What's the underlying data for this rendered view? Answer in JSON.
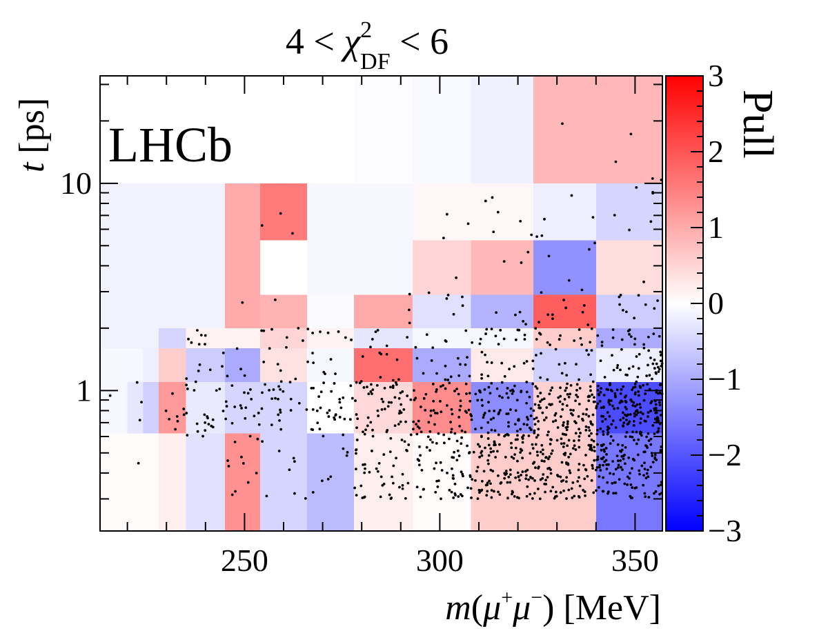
{
  "chart_data": {
    "type": "heatmap",
    "title": {
      "prefix": "4 < ",
      "symbol": "χ",
      "superscript": "2",
      "subscript": "DF",
      "suffix": " < 6"
    },
    "label": "LHCb",
    "xlabel": {
      "m": "m",
      "open": "(",
      "mu1": "μ",
      "plus": "+",
      "mu2": "μ",
      "minus": "−",
      "close": ")",
      "unit": " [MeV]"
    },
    "ylabel": {
      "t": "t",
      "unit": " [ps]"
    },
    "xlim": [
      213,
      357
    ],
    "ylim": [
      0.21,
      33
    ],
    "yscale": "log",
    "x_ticks": [
      "250",
      "300",
      "350"
    ],
    "y_ticks": [
      "1",
      "10"
    ],
    "colorbar": {
      "label": "Pull",
      "range": [
        -3,
        3
      ],
      "ticks": [
        "3",
        "2",
        "1",
        "0",
        "−1",
        "−2",
        "−3"
      ]
    },
    "cells": [
      {
        "x": [
          213,
          357
        ],
        "y": [
          10,
          33
        ],
        "pull": 0.0
      },
      {
        "x": [
          278,
          293
        ],
        "y": [
          10,
          33
        ],
        "pull": -0.03
      },
      {
        "x": [
          293,
          308
        ],
        "y": [
          10,
          33
        ],
        "pull": -0.08
      },
      {
        "x": [
          308,
          324
        ],
        "y": [
          10,
          33
        ],
        "pull": -0.18
      },
      {
        "x": [
          324,
          357
        ],
        "y": [
          10,
          33
        ],
        "pull": 0.85
      },
      {
        "x": [
          213,
          245
        ],
        "y": [
          2.9,
          10
        ],
        "pull": -0.15
      },
      {
        "x": [
          245,
          254
        ],
        "y": [
          2.9,
          10
        ],
        "pull": 1.0
      },
      {
        "x": [
          254,
          266
        ],
        "y": [
          5.3,
          10
        ],
        "pull": 1.55
      },
      {
        "x": [
          254,
          266
        ],
        "y": [
          2.9,
          5.3
        ],
        "pull": 0.0
      },
      {
        "x": [
          266,
          278
        ],
        "y": [
          2.9,
          10
        ],
        "pull": -0.1
      },
      {
        "x": [
          278,
          293
        ],
        "y": [
          2.9,
          10
        ],
        "pull": -0.1
      },
      {
        "x": [
          293,
          308
        ],
        "y": [
          5.3,
          10
        ],
        "pull": 0.1
      },
      {
        "x": [
          308,
          324
        ],
        "y": [
          5.3,
          10
        ],
        "pull": 0.1
      },
      {
        "x": [
          324,
          340
        ],
        "y": [
          5.3,
          10
        ],
        "pull": -0.2
      },
      {
        "x": [
          340,
          357
        ],
        "y": [
          5.3,
          10
        ],
        "pull": -0.5
      },
      {
        "x": [
          293,
          308
        ],
        "y": [
          2.9,
          5.3
        ],
        "pull": 0.5
      },
      {
        "x": [
          308,
          324
        ],
        "y": [
          2.9,
          5.3
        ],
        "pull": 0.85
      },
      {
        "x": [
          324,
          340
        ],
        "y": [
          2.9,
          5.3
        ],
        "pull": -1.3
      },
      {
        "x": [
          340,
          357
        ],
        "y": [
          2.9,
          5.3
        ],
        "pull": 0.4
      },
      {
        "x": [
          213,
          245
        ],
        "y": [
          2.0,
          2.9
        ],
        "pull": -0.15
      },
      {
        "x": [
          245,
          254
        ],
        "y": [
          2.0,
          2.9
        ],
        "pull": 1.0
      },
      {
        "x": [
          254,
          266
        ],
        "y": [
          2.0,
          2.9
        ],
        "pull": 0.9
      },
      {
        "x": [
          266,
          278
        ],
        "y": [
          2.0,
          2.9
        ],
        "pull": -0.05
      },
      {
        "x": [
          278,
          293
        ],
        "y": [
          2.0,
          2.9
        ],
        "pull": 1.0
      },
      {
        "x": [
          293,
          308
        ],
        "y": [
          2.0,
          2.9
        ],
        "pull": -0.35
      },
      {
        "x": [
          308,
          324
        ],
        "y": [
          2.0,
          2.9
        ],
        "pull": -0.9
      },
      {
        "x": [
          324,
          340
        ],
        "y": [
          2.0,
          2.9
        ],
        "pull": 1.9
      },
      {
        "x": [
          340,
          357
        ],
        "y": [
          2.0,
          2.9
        ],
        "pull": -0.6
      },
      {
        "x": [
          213,
          228
        ],
        "y": [
          1.6,
          2.0
        ],
        "pull": -0.15
      },
      {
        "x": [
          228,
          235
        ],
        "y": [
          1.6,
          2.0
        ],
        "pull": -0.5
      },
      {
        "x": [
          235,
          245
        ],
        "y": [
          1.6,
          2.0
        ],
        "pull": 0.15
      },
      {
        "x": [
          245,
          254
        ],
        "y": [
          1.6,
          2.0
        ],
        "pull": 0.15
      },
      {
        "x": [
          254,
          266
        ],
        "y": [
          1.6,
          2.0
        ],
        "pull": 0.5
      },
      {
        "x": [
          266,
          278
        ],
        "y": [
          1.6,
          2.0
        ],
        "pull": 0.15
      },
      {
        "x": [
          278,
          293
        ],
        "y": [
          1.6,
          2.0
        ],
        "pull": -0.3
      },
      {
        "x": [
          293,
          308
        ],
        "y": [
          1.6,
          2.0
        ],
        "pull": -0.1
      },
      {
        "x": [
          308,
          324
        ],
        "y": [
          1.6,
          2.0
        ],
        "pull": -0.1
      },
      {
        "x": [
          324,
          340
        ],
        "y": [
          1.6,
          2.0
        ],
        "pull": 0.6
      },
      {
        "x": [
          340,
          357
        ],
        "y": [
          1.6,
          2.0
        ],
        "pull": -1.0
      },
      {
        "x": [
          213,
          224
        ],
        "y": [
          1.1,
          1.6
        ],
        "pull": -0.1
      },
      {
        "x": [
          224,
          228
        ],
        "y": [
          1.1,
          1.6
        ],
        "pull": -0.2
      },
      {
        "x": [
          228,
          235
        ],
        "y": [
          1.1,
          1.6
        ],
        "pull": 0.6
      },
      {
        "x": [
          235,
          245
        ],
        "y": [
          1.1,
          1.6
        ],
        "pull": -0.6
      },
      {
        "x": [
          245,
          254
        ],
        "y": [
          1.1,
          1.6
        ],
        "pull": -1.0
      },
      {
        "x": [
          254,
          266
        ],
        "y": [
          1.1,
          1.6
        ],
        "pull": 0.35
      },
      {
        "x": [
          266,
          278
        ],
        "y": [
          1.1,
          1.6
        ],
        "pull": -0.1
      },
      {
        "x": [
          278,
          293
        ],
        "y": [
          1.1,
          1.6
        ],
        "pull": 1.7
      },
      {
        "x": [
          293,
          308
        ],
        "y": [
          1.1,
          1.6
        ],
        "pull": -1.0
      },
      {
        "x": [
          308,
          324
        ],
        "y": [
          1.1,
          1.6
        ],
        "pull": 0.25
      },
      {
        "x": [
          324,
          340
        ],
        "y": [
          1.1,
          1.6
        ],
        "pull": -0.55
      },
      {
        "x": [
          340,
          357
        ],
        "y": [
          1.1,
          1.6
        ],
        "pull": -0.2
      },
      {
        "x": [
          213,
          220
        ],
        "y": [
          0.62,
          1.1
        ],
        "pull": -0.1
      },
      {
        "x": [
          220,
          224
        ],
        "y": [
          0.62,
          1.1
        ],
        "pull": -0.3
      },
      {
        "x": [
          224,
          228
        ],
        "y": [
          0.62,
          1.1
        ],
        "pull": -0.55
      },
      {
        "x": [
          228,
          235
        ],
        "y": [
          0.62,
          1.1
        ],
        "pull": 1.2
      },
      {
        "x": [
          235,
          245
        ],
        "y": [
          0.62,
          1.1
        ],
        "pull": -0.25
      },
      {
        "x": [
          245,
          254
        ],
        "y": [
          0.62,
          1.1
        ],
        "pull": -0.5
      },
      {
        "x": [
          254,
          266
        ],
        "y": [
          0.62,
          1.1
        ],
        "pull": -0.5
      },
      {
        "x": [
          266,
          278
        ],
        "y": [
          0.62,
          1.1
        ],
        "pull": 0.0
      },
      {
        "x": [
          278,
          293
        ],
        "y": [
          0.62,
          1.1
        ],
        "pull": 0.45
      },
      {
        "x": [
          293,
          308
        ],
        "y": [
          0.62,
          1.1
        ],
        "pull": 1.35
      },
      {
        "x": [
          308,
          324
        ],
        "y": [
          0.62,
          1.1
        ],
        "pull": -1.35
      },
      {
        "x": [
          324,
          340
        ],
        "y": [
          0.62,
          1.1
        ],
        "pull": 0.55
      },
      {
        "x": [
          340,
          357
        ],
        "y": [
          0.62,
          1.1
        ],
        "pull": -2.1
      },
      {
        "x": [
          213,
          228
        ],
        "y": [
          0.21,
          0.62
        ],
        "pull": 0.05
      },
      {
        "x": [
          228,
          235
        ],
        "y": [
          0.21,
          0.62
        ],
        "pull": 0.2
      },
      {
        "x": [
          235,
          245
        ],
        "y": [
          0.21,
          0.62
        ],
        "pull": -0.35
      },
      {
        "x": [
          245,
          254
        ],
        "y": [
          0.21,
          0.62
        ],
        "pull": 1.3
      },
      {
        "x": [
          254,
          266
        ],
        "y": [
          0.21,
          0.62
        ],
        "pull": -0.5
      },
      {
        "x": [
          266,
          278
        ],
        "y": [
          0.21,
          0.62
        ],
        "pull": -0.8
      },
      {
        "x": [
          278,
          293
        ],
        "y": [
          0.21,
          0.62
        ],
        "pull": 0.2
      },
      {
        "x": [
          293,
          308
        ],
        "y": [
          0.21,
          0.62
        ],
        "pull": 0.05
      },
      {
        "x": [
          308,
          340
        ],
        "y": [
          0.21,
          0.62
        ],
        "pull": 0.6
      },
      {
        "x": [
          340,
          357
        ],
        "y": [
          0.21,
          0.62
        ],
        "pull": -1.6
      }
    ],
    "scatter_density": [
      {
        "x": [
          213,
          228
        ],
        "y": [
          0.3,
          1.1
        ],
        "n": 5
      },
      {
        "x": [
          228,
          245
        ],
        "y": [
          0.6,
          1.1
        ],
        "n": 28
      },
      {
        "x": [
          245,
          266
        ],
        "y": [
          0.6,
          1.1
        ],
        "n": 40
      },
      {
        "x": [
          266,
          278
        ],
        "y": [
          0.6,
          1.1
        ],
        "n": 32
      },
      {
        "x": [
          278,
          293
        ],
        "y": [
          0.6,
          1.1
        ],
        "n": 55
      },
      {
        "x": [
          293,
          308
        ],
        "y": [
          0.6,
          1.1
        ],
        "n": 60
      },
      {
        "x": [
          308,
          324
        ],
        "y": [
          0.6,
          1.1
        ],
        "n": 80
      },
      {
        "x": [
          324,
          340
        ],
        "y": [
          0.6,
          1.1
        ],
        "n": 110
      },
      {
        "x": [
          340,
          357
        ],
        "y": [
          0.6,
          1.1
        ],
        "n": 160
      },
      {
        "x": [
          245,
          278
        ],
        "y": [
          0.3,
          0.6
        ],
        "n": 25
      },
      {
        "x": [
          278,
          293
        ],
        "y": [
          0.3,
          0.6
        ],
        "n": 45
      },
      {
        "x": [
          293,
          308
        ],
        "y": [
          0.3,
          0.6
        ],
        "n": 60
      },
      {
        "x": [
          308,
          324
        ],
        "y": [
          0.3,
          0.6
        ],
        "n": 110
      },
      {
        "x": [
          324,
          340
        ],
        "y": [
          0.3,
          0.6
        ],
        "n": 120
      },
      {
        "x": [
          340,
          357
        ],
        "y": [
          0.3,
          0.6
        ],
        "n": 130
      },
      {
        "x": [
          235,
          278
        ],
        "y": [
          1.1,
          2.0
        ],
        "n": 45
      },
      {
        "x": [
          278,
          308
        ],
        "y": [
          1.1,
          2.0
        ],
        "n": 35
      },
      {
        "x": [
          308,
          340
        ],
        "y": [
          1.1,
          2.0
        ],
        "n": 60
      },
      {
        "x": [
          340,
          357
        ],
        "y": [
          1.1,
          2.0
        ],
        "n": 55
      },
      {
        "x": [
          300,
          357
        ],
        "y": [
          2.0,
          3.0
        ],
        "n": 30
      },
      {
        "x": [
          245,
          300
        ],
        "y": [
          2.0,
          3.0
        ],
        "n": 6
      },
      {
        "x": [
          300,
          357
        ],
        "y": [
          3.0,
          10
        ],
        "n": 30
      },
      {
        "x": [
          245,
          266
        ],
        "y": [
          5.0,
          8.0
        ],
        "n": 3
      },
      {
        "x": [
          320,
          357
        ],
        "y": [
          10,
          20
        ],
        "n": 5
      }
    ]
  }
}
